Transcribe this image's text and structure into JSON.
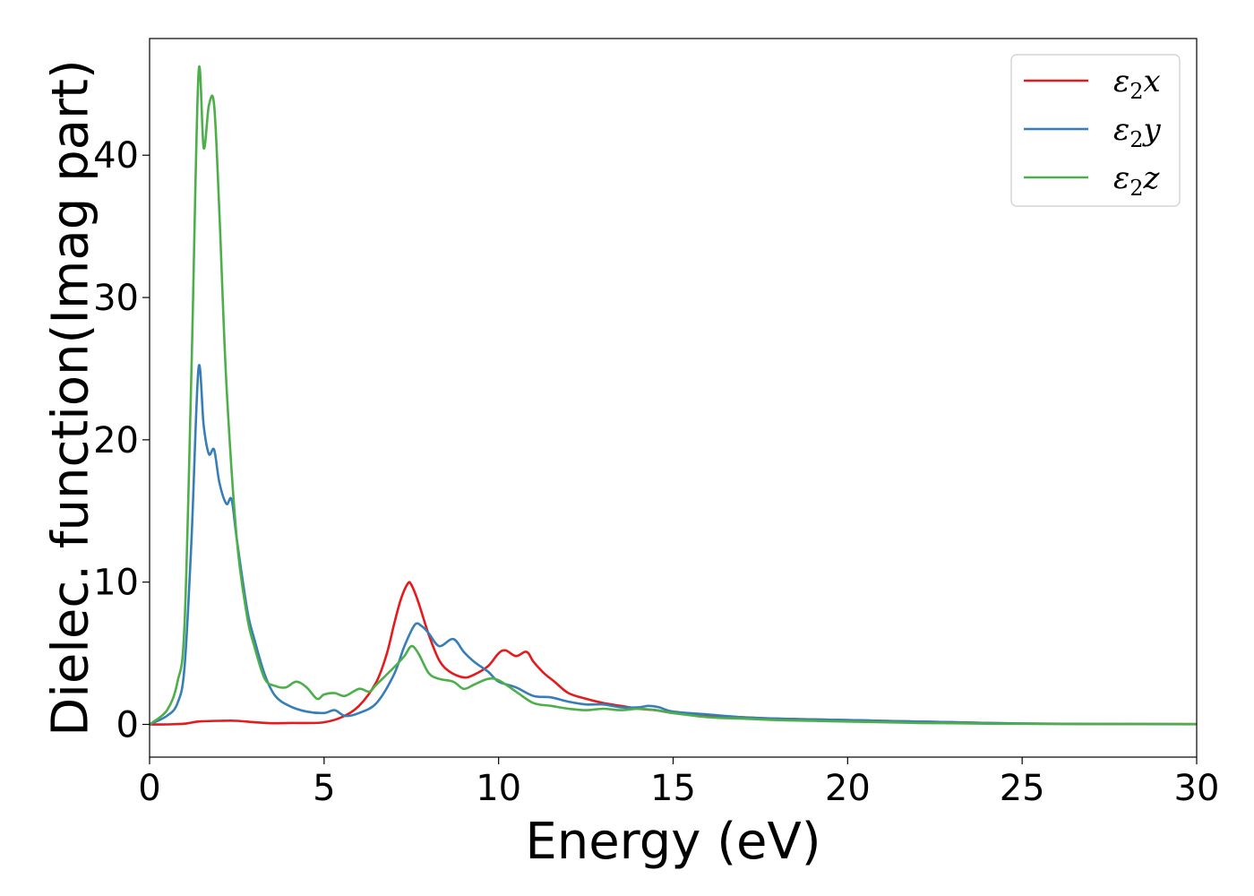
{
  "chart_data": {
    "type": "line",
    "title": "",
    "xlabel": "Energy (eV)",
    "ylabel": "Dielec. function(Imag part)",
    "xlim": [
      0,
      30
    ],
    "ylim": [
      -2.3,
      48.2
    ],
    "xticks": [
      0,
      5,
      10,
      15,
      20,
      25,
      30
    ],
    "yticks": [
      0,
      10,
      20,
      30,
      40
    ],
    "grid": false,
    "legend": "top-right",
    "series": [
      {
        "name": "ε2x",
        "legend_main": "ε",
        "legend_sub": "2",
        "legend_axis": "x",
        "color": "#e41a1c",
        "x": [
          0,
          0.5,
          1.0,
          1.4,
          2.0,
          2.5,
          3.0,
          3.5,
          4.0,
          4.5,
          5.0,
          5.5,
          6.0,
          6.5,
          6.8,
          7.0,
          7.2,
          7.4,
          7.5,
          7.7,
          8.0,
          8.3,
          8.6,
          9.0,
          9.3,
          9.7,
          10.0,
          10.2,
          10.5,
          10.8,
          11.0,
          11.3,
          11.6,
          12.0,
          12.5,
          13.0,
          13.5,
          14.0,
          14.5,
          15.0,
          16.0,
          17.0,
          18.0,
          19.0,
          20.0,
          21.0,
          22.0,
          23.0,
          24.0,
          25.0,
          27.0,
          30.0
        ],
        "y": [
          0,
          0,
          0.05,
          0.2,
          0.25,
          0.25,
          0.15,
          0.08,
          0.1,
          0.1,
          0.15,
          0.5,
          1.3,
          3.0,
          5.0,
          7.0,
          8.8,
          9.9,
          9.8,
          8.6,
          6.3,
          4.5,
          3.7,
          3.3,
          3.5,
          4.1,
          5.0,
          5.2,
          4.8,
          5.1,
          4.4,
          3.6,
          3.0,
          2.2,
          1.8,
          1.5,
          1.3,
          1.1,
          1.0,
          0.8,
          0.6,
          0.5,
          0.4,
          0.35,
          0.3,
          0.25,
          0.2,
          0.15,
          0.1,
          0.05,
          0.03,
          0.02
        ]
      },
      {
        "name": "ε2y",
        "legend_main": "ε",
        "legend_sub": "2",
        "legend_axis": "y",
        "color": "#377eb8",
        "x": [
          0,
          0.5,
          0.8,
          1.0,
          1.2,
          1.4,
          1.55,
          1.7,
          1.85,
          2.0,
          2.2,
          2.35,
          2.5,
          2.8,
          3.0,
          3.3,
          3.6,
          4.0,
          4.5,
          5.0,
          5.3,
          5.6,
          6.0,
          6.5,
          7.0,
          7.3,
          7.6,
          7.8,
          8.0,
          8.3,
          8.7,
          9.0,
          9.3,
          9.7,
          10.0,
          10.5,
          11.0,
          11.5,
          12.0,
          12.5,
          13.0,
          13.5,
          14.0,
          14.3,
          14.6,
          15.0,
          16.0,
          17.0,
          18.0,
          19.0,
          20.0,
          21.0,
          22.0,
          23.0,
          24.0,
          25.0,
          27.0,
          30.0
        ],
        "y": [
          0,
          0.6,
          1.5,
          4.0,
          13.0,
          25.0,
          21.0,
          19.0,
          19.3,
          17.0,
          15.5,
          15.8,
          13.0,
          8.0,
          6.0,
          3.5,
          2.0,
          1.3,
          0.9,
          0.8,
          1.0,
          0.6,
          0.8,
          1.5,
          3.5,
          5.5,
          7.0,
          6.9,
          6.4,
          5.5,
          6.0,
          5.1,
          4.4,
          3.7,
          3.0,
          2.6,
          2.0,
          1.9,
          1.6,
          1.4,
          1.4,
          1.2,
          1.2,
          1.3,
          1.2,
          0.9,
          0.7,
          0.5,
          0.4,
          0.35,
          0.3,
          0.25,
          0.2,
          0.15,
          0.1,
          0.07,
          0.03,
          0.02
        ]
      },
      {
        "name": "ε2z",
        "legend_main": "ε",
        "legend_sub": "2",
        "legend_axis": "z",
        "color": "#4daf4a",
        "x": [
          0,
          0.5,
          0.8,
          1.0,
          1.2,
          1.4,
          1.55,
          1.7,
          1.85,
          2.0,
          2.2,
          2.5,
          2.8,
          3.0,
          3.3,
          3.6,
          3.9,
          4.2,
          4.5,
          4.8,
          5.0,
          5.3,
          5.6,
          6.0,
          6.3,
          6.5,
          7.0,
          7.3,
          7.5,
          7.7,
          8.0,
          8.3,
          8.7,
          9.0,
          9.3,
          9.7,
          10.0,
          10.5,
          11.0,
          11.5,
          12.0,
          12.5,
          13.0,
          13.5,
          14.0,
          14.5,
          15.0,
          16.0,
          17.0,
          18.0,
          19.0,
          20.0,
          21.0,
          22.0,
          23.0,
          24.0,
          25.0,
          27.0,
          30.0
        ],
        "y": [
          0,
          1.0,
          3.0,
          7.0,
          25.0,
          45.7,
          40.5,
          43.5,
          43.5,
          36.0,
          24.0,
          13.0,
          7.5,
          5.5,
          3.2,
          2.7,
          2.6,
          3.0,
          2.6,
          1.8,
          2.1,
          2.2,
          2.0,
          2.5,
          2.3,
          2.8,
          4.0,
          4.8,
          5.5,
          5.0,
          3.6,
          3.2,
          3.0,
          2.5,
          2.8,
          3.2,
          3.1,
          2.3,
          1.5,
          1.3,
          1.1,
          1.0,
          1.1,
          1.0,
          1.1,
          1.0,
          0.8,
          0.5,
          0.4,
          0.3,
          0.25,
          0.2,
          0.15,
          0.1,
          0.08,
          0.05,
          0.04,
          0.02,
          0.01
        ]
      }
    ]
  }
}
